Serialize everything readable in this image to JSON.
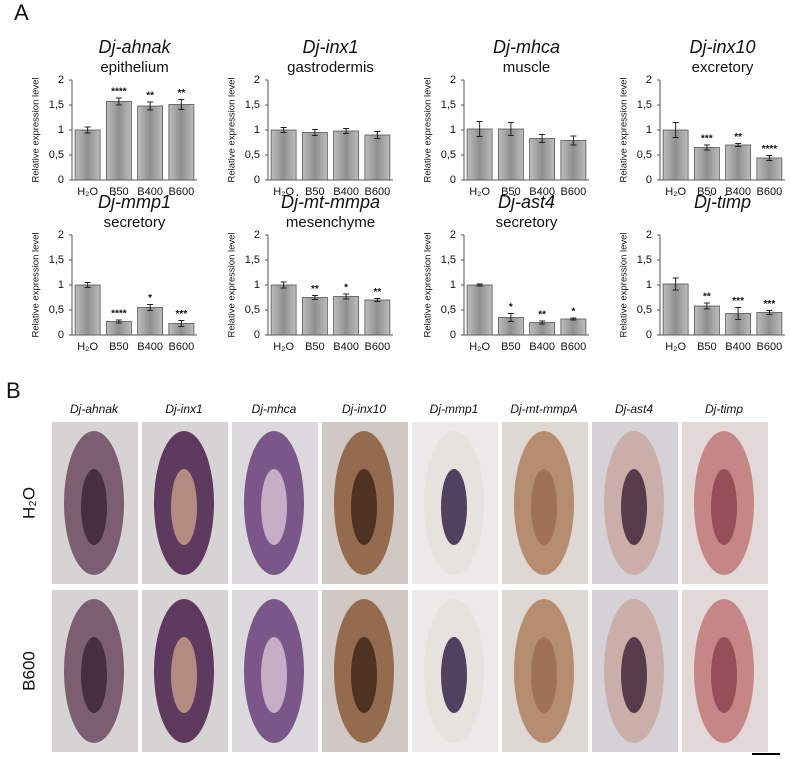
{
  "panels": {
    "a": "A",
    "b": "B"
  },
  "chart_data": [
    {
      "type": "bar",
      "title": "Dj-ahnak",
      "subtitle": "epithelium",
      "ylabel": "Relative expression level",
      "categories": [
        "H₂O",
        "B50",
        "B400",
        "B600"
      ],
      "values": [
        1.0,
        1.57,
        1.48,
        1.51
      ],
      "errors": [
        0.06,
        0.07,
        0.08,
        0.1
      ],
      "significance": [
        null,
        "****",
        "**",
        "**"
      ],
      "color": "#a0a0a0",
      "ylim": [
        0,
        2
      ],
      "yticks": [
        0,
        {
          "value": 0.5,
          "label": "0,5"
        },
        1,
        {
          "value": 1.5,
          "label": "1,5"
        },
        2
      ]
    },
    {
      "type": "bar",
      "title": "Dj-inx1",
      "subtitle": "gastrodermis",
      "ylabel": "Relative expression level",
      "categories": [
        "H₂O",
        "B50",
        "B400",
        "B600"
      ],
      "values": [
        1.0,
        0.95,
        0.98,
        0.9
      ],
      "errors": [
        0.05,
        0.06,
        0.05,
        0.07
      ],
      "significance": [
        null,
        null,
        null,
        null
      ],
      "color": "#a0a0a0",
      "ylim": [
        0,
        2
      ],
      "yticks": [
        0,
        {
          "value": 0.5,
          "label": "0,5"
        },
        1,
        {
          "value": 1.5,
          "label": "1,5"
        },
        2
      ]
    },
    {
      "type": "bar",
      "title": "Dj-mhca",
      "subtitle": "muscle",
      "ylabel": "Relative expression level",
      "categories": [
        "H₂O",
        "B50",
        "B400",
        "B600"
      ],
      "values": [
        1.02,
        1.02,
        0.83,
        0.79
      ],
      "errors": [
        0.15,
        0.13,
        0.08,
        0.09
      ],
      "significance": [
        null,
        null,
        null,
        null
      ],
      "color": "#a0a0a0",
      "ylim": [
        0,
        2
      ],
      "yticks": [
        0,
        {
          "value": 0.5,
          "label": "0,5"
        },
        1,
        {
          "value": 1.5,
          "label": "1,5"
        },
        2
      ]
    },
    {
      "type": "bar",
      "title": "Dj-inx10",
      "subtitle": "excretory",
      "ylabel": "Relative expression level",
      "categories": [
        "H₂O",
        "B50",
        "B400",
        "B600"
      ],
      "values": [
        1.0,
        0.65,
        0.7,
        0.44
      ],
      "errors": [
        0.15,
        0.05,
        0.03,
        0.05
      ],
      "significance": [
        null,
        "***",
        "**",
        "****"
      ],
      "color": "#a0a0a0",
      "ylim": [
        0,
        2
      ],
      "yticks": [
        0,
        {
          "value": 0.5,
          "label": "0,5"
        },
        1,
        {
          "value": 1.5,
          "label": "1,5"
        },
        2
      ]
    },
    {
      "type": "bar",
      "title": "Dj-mmp1",
      "subtitle": "secretory",
      "ylabel": "Relative expression level",
      "categories": [
        "H₂O",
        "B50",
        "B400",
        "B600"
      ],
      "values": [
        1.0,
        0.27,
        0.55,
        0.23
      ],
      "errors": [
        0.05,
        0.03,
        0.06,
        0.06
      ],
      "significance": [
        null,
        "****",
        "*",
        "***"
      ],
      "color": "#a0a0a0",
      "ylim": [
        0,
        2
      ],
      "yticks": [
        0,
        {
          "value": 0.5,
          "label": "0,5"
        },
        1,
        {
          "value": 1.5,
          "label": "1,5"
        },
        2
      ]
    },
    {
      "type": "bar",
      "title": "Dj-mt-mmpa",
      "subtitle": "mesenchyme",
      "ylabel": "Relative expression level",
      "categories": [
        "H₂O",
        "B50",
        "B400",
        "B600"
      ],
      "values": [
        1.0,
        0.75,
        0.77,
        0.7
      ],
      "errors": [
        0.06,
        0.04,
        0.05,
        0.03
      ],
      "significance": [
        null,
        "**",
        "*",
        "**"
      ],
      "color": "#a0a0a0",
      "ylim": [
        0,
        2
      ],
      "yticks": [
        0,
        {
          "value": 0.5,
          "label": "0,5"
        },
        1,
        {
          "value": 1.5,
          "label": "1,5"
        },
        2
      ]
    },
    {
      "type": "bar",
      "title": "Dj-ast4",
      "subtitle": "secretory",
      "ylabel": "Relative expression level",
      "categories": [
        "H₂O",
        "B50",
        "B400",
        "B600"
      ],
      "values": [
        1.0,
        0.35,
        0.25,
        0.32
      ],
      "errors": [
        0.02,
        0.08,
        0.03,
        0.02
      ],
      "significance": [
        null,
        "*",
        "**",
        "*"
      ],
      "color": "#a0a0a0",
      "ylim": [
        0,
        2
      ],
      "yticks": [
        0,
        {
          "value": 0.5,
          "label": "0,5"
        },
        1,
        {
          "value": 1.5,
          "label": "1,5"
        },
        2
      ]
    },
    {
      "type": "bar",
      "title": "Dj-timp",
      "ylabel": "Relative expression level",
      "categories": [
        "H₂O",
        "B50",
        "B400",
        "B600"
      ],
      "values": [
        1.02,
        0.58,
        0.43,
        0.45
      ],
      "errors": [
        0.12,
        0.06,
        0.12,
        0.04
      ],
      "significance": [
        null,
        "**",
        "***",
        "***"
      ],
      "color": "#a0a0a0",
      "ylim": [
        0,
        2
      ],
      "yticks": [
        0,
        {
          "value": 0.5,
          "label": "0,5"
        },
        1,
        {
          "value": 1.5,
          "label": "1,5"
        },
        2
      ]
    }
  ],
  "image_grid": {
    "columns": [
      "Dj-ahnak",
      "Dj-inx1",
      "Dj-mhca",
      "Dj-inx10",
      "Dj-mmp1",
      "Dj-mt-mmpA",
      "Dj-ast4",
      "Dj-timp"
    ],
    "rows": [
      "H₂O",
      "B600"
    ]
  }
}
